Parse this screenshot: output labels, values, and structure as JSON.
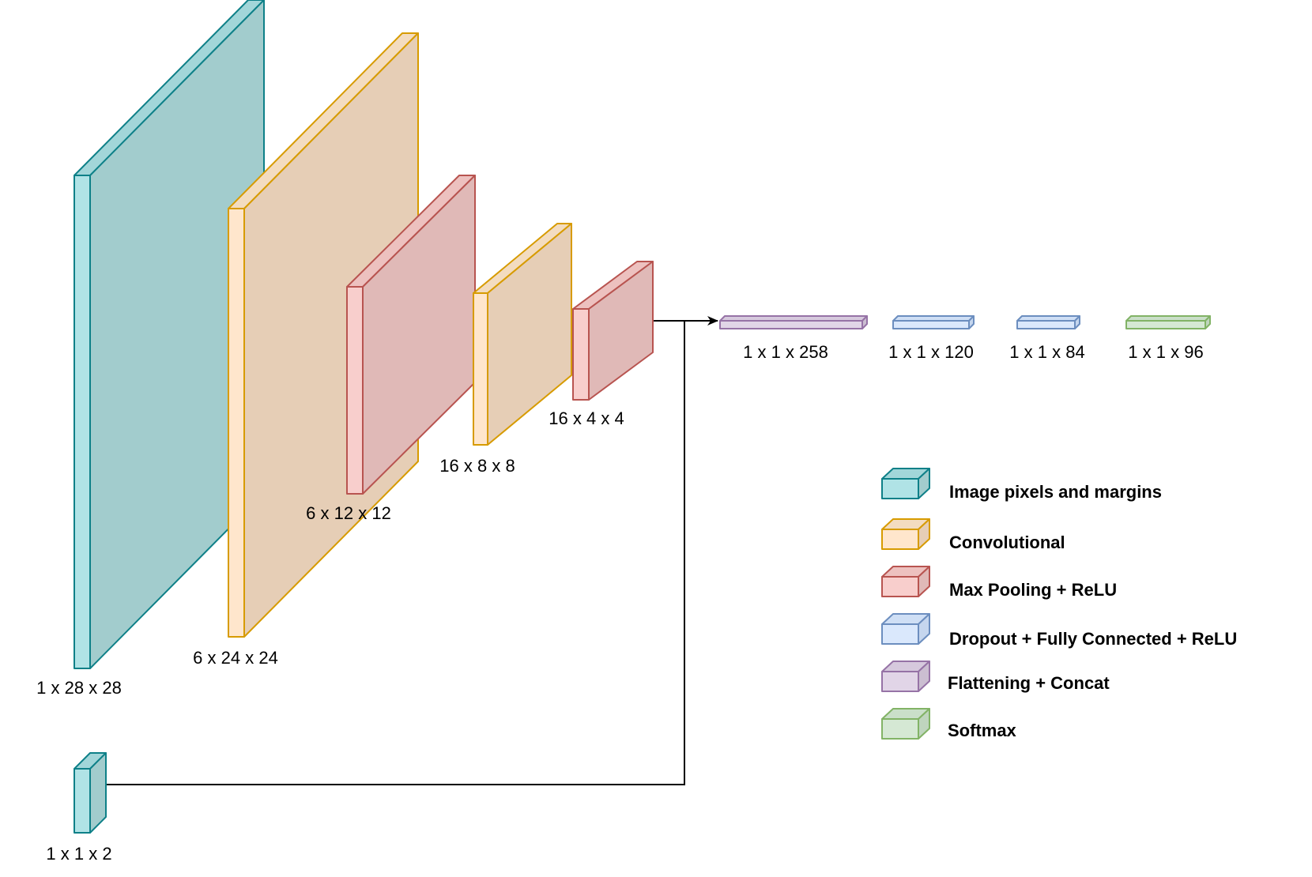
{
  "palette": {
    "teal": {
      "face": "#b0e3e6",
      "top": "#a2d6d9",
      "side": "#a2cccd",
      "stroke": "#0e8088"
    },
    "orange": {
      "face": "#ffe6cc",
      "top": "#f3dcc0",
      "side": "#e6ceb6",
      "stroke": "#d79b00"
    },
    "red": {
      "face": "#f8cecc",
      "top": "#edc1bf",
      "side": "#e0b9b7",
      "stroke": "#b85450"
    },
    "blue": {
      "face": "#dae8fc",
      "top": "#cfdff5",
      "side": "#c5d6ee",
      "stroke": "#6c8ebf"
    },
    "purple": {
      "face": "#e1d5e7",
      "top": "#d6c9dd",
      "side": "#cbbed1",
      "stroke": "#9673a6"
    },
    "green": {
      "face": "#d5e8d4",
      "top": "#cadfc9",
      "side": "#bfd5be",
      "stroke": "#82b366"
    }
  },
  "connector_color": "#000000",
  "layers": [
    {
      "id": "input-image",
      "color": "teal",
      "label": "1 x 28 x 28"
    },
    {
      "id": "conv1",
      "color": "orange",
      "label": "6 x 24 x 24"
    },
    {
      "id": "pool1",
      "color": "red",
      "label": "6 x 12 x 12"
    },
    {
      "id": "conv2",
      "color": "orange",
      "label": "16 x 8 x 8"
    },
    {
      "id": "pool2",
      "color": "red",
      "label": "16 x 4 x 4"
    },
    {
      "id": "input-margins",
      "color": "teal",
      "label": "1 x 1 x 2"
    },
    {
      "id": "flatten",
      "color": "purple",
      "label": "1 x 1 x 258"
    },
    {
      "id": "fc1",
      "color": "blue",
      "label": "1 x 1 x 120"
    },
    {
      "id": "fc2",
      "color": "blue",
      "label": "1 x 1 x 84"
    },
    {
      "id": "softmax",
      "color": "green",
      "label": "1 x 1 x 96"
    }
  ],
  "legend": [
    {
      "color": "teal",
      "label": "Image pixels and margins"
    },
    {
      "color": "orange",
      "label": "Convolutional"
    },
    {
      "color": "red",
      "label": "Max Pooling + ReLU"
    },
    {
      "color": "blue",
      "label": "Dropout + Fully Connected + ReLU"
    },
    {
      "color": "purple",
      "label": "Flattening + Concat"
    },
    {
      "color": "green",
      "label": "Softmax"
    }
  ]
}
